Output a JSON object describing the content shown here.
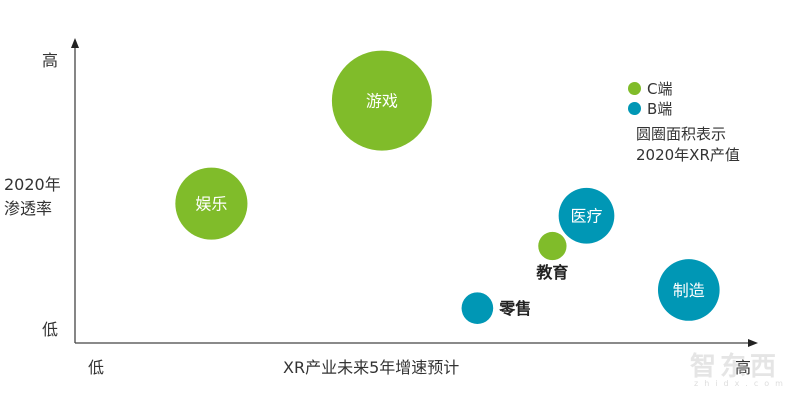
{
  "chart_data": {
    "type": "scatter",
    "subtype": "bubble",
    "xlabel": "XR产业未来5年增速预计",
    "ylabel": "2020年渗透率",
    "x_tick_labels": {
      "low": "低",
      "high": "高"
    },
    "y_tick_labels": {
      "low": "低",
      "high": "高"
    },
    "xlim": [
      0,
      100
    ],
    "ylim": [
      0,
      100
    ],
    "grid": false,
    "legend_position": "top-right",
    "legend": [
      {
        "name": "C端",
        "color": "#80bc2a"
      },
      {
        "name": "B端",
        "color": "#0097b5"
      }
    ],
    "legend_note": [
      "圆圈面积表示",
      "2020年XR产值"
    ],
    "points": [
      {
        "label": "游戏",
        "series": "C端",
        "x": 45,
        "y": 80,
        "size": 100,
        "label_pos": "inside"
      },
      {
        "label": "娱乐",
        "series": "C端",
        "x": 20,
        "y": 46,
        "size": 52,
        "label_pos": "inside"
      },
      {
        "label": "医疗",
        "series": "B端",
        "x": 75,
        "y": 42,
        "size": 31,
        "label_pos": "inside"
      },
      {
        "label": "教育",
        "series": "C端",
        "x": 70,
        "y": 32,
        "size": 8,
        "label_pos": "below"
      },
      {
        "label": "零售",
        "series": "B端",
        "x": 59,
        "y": 11.5,
        "size": 10,
        "label_pos": "right"
      },
      {
        "label": "制造",
        "series": "B端",
        "x": 90,
        "y": 17.5,
        "size": 38,
        "label_pos": "inside"
      }
    ]
  },
  "watermark": {
    "logo": "智东西",
    "url": "zhidx.com"
  }
}
